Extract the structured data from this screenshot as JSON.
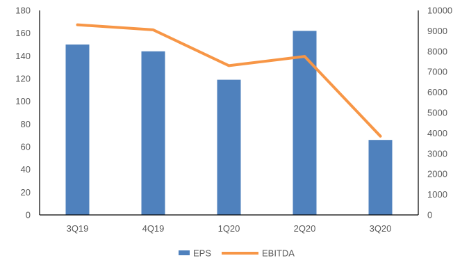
{
  "chart_data": {
    "type": "bar",
    "categories": [
      "3Q19",
      "4Q19",
      "1Q20",
      "2Q20",
      "3Q20"
    ],
    "series": [
      {
        "name": "EPS",
        "type": "bar",
        "axis": "left",
        "color": "#4F81BD",
        "values": [
          150,
          144,
          119,
          162,
          66
        ]
      },
      {
        "name": "EBITDA",
        "type": "line",
        "axis": "right",
        "color": "#F79646",
        "values": [
          9300,
          9050,
          7300,
          7750,
          3850
        ]
      }
    ],
    "y_left": {
      "min": 0,
      "max": 180,
      "step": 20
    },
    "y_right": {
      "min": 0,
      "max": 10000,
      "step": 1000
    },
    "grid": false,
    "legend_position": "bottom"
  }
}
